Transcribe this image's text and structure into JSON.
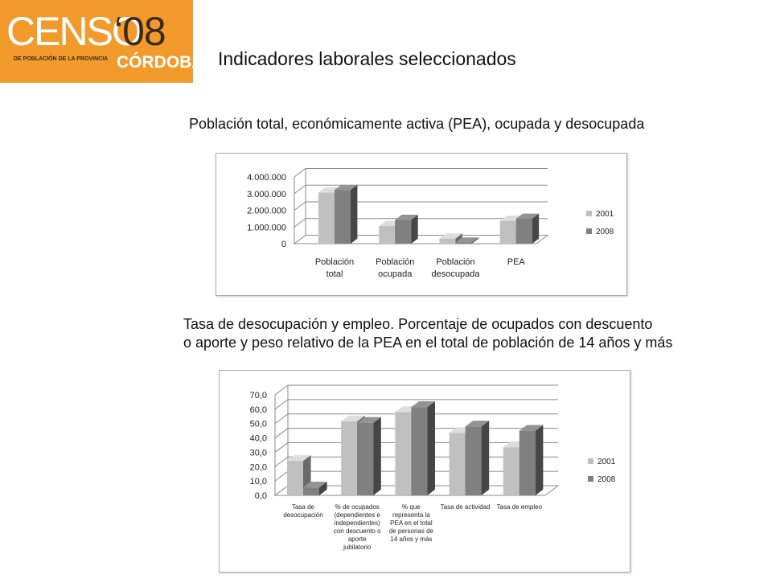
{
  "logo": {
    "brand": "CENSO",
    "year": "‘08",
    "subtitle": "DE POBLACIÓN DE LA PROVINCIA",
    "city": "CÓRDOBA"
  },
  "page_title": "Indicadores laborales seleccionados",
  "chart_data": [
    {
      "type": "bar",
      "title": "Población total, económicamente activa (PEA), ocupada y desocupada",
      "categories": [
        [
          "Población",
          "total"
        ],
        [
          "Población",
          "ocupada"
        ],
        [
          "Población",
          "desocupada"
        ],
        [
          "PEA"
        ]
      ],
      "series": [
        {
          "name": "2001",
          "values": [
            3066801,
            1060000,
            310000,
            1370000
          ],
          "color": "#c0c0c0"
        },
        {
          "name": "2008",
          "values": [
            3220000,
            1430000,
            70000,
            1500000
          ],
          "color": "#808080"
        }
      ],
      "y_ticks": [
        "4.000.000",
        "3.000.000",
        "2.000.000",
        "1.000.000",
        "0"
      ],
      "ylim": [
        0,
        4000000
      ],
      "grid": true,
      "legend": "right"
    },
    {
      "type": "bar",
      "title_lines": [
        "Tasa de desocupación y empleo. Porcentaje de ocupados con descuento",
        "o aporte y peso relativo de la PEA  en el total de población de 14 años y más"
      ],
      "categories": [
        [
          "Tasa de",
          "desocupación"
        ],
        [
          "% de ocupados",
          "(dependientes e",
          "independientes)",
          "con descuento o",
          "aporte",
          "jubilatorio"
        ],
        [
          "% que",
          "representa la",
          "PEA en el total",
          "de personas de",
          "14 años y más"
        ],
        [
          "Tasa de actividad"
        ],
        [
          "Tasa de empleo"
        ]
      ],
      "series": [
        {
          "name": "2001",
          "values": [
            24.0,
            51.5,
            58.0,
            43.5,
            33.5
          ],
          "color": "#c0c0c0"
        },
        {
          "name": "2008",
          "values": [
            5.5,
            50.5,
            61.5,
            48.0,
            45.0
          ],
          "color": "#808080"
        }
      ],
      "y_ticks": [
        "70,0",
        "60,0",
        "50,0",
        "40,0",
        "30,0",
        "20,0",
        "10,0",
        "0,0"
      ],
      "ylim": [
        0,
        70
      ],
      "grid": true,
      "legend": "right"
    }
  ]
}
